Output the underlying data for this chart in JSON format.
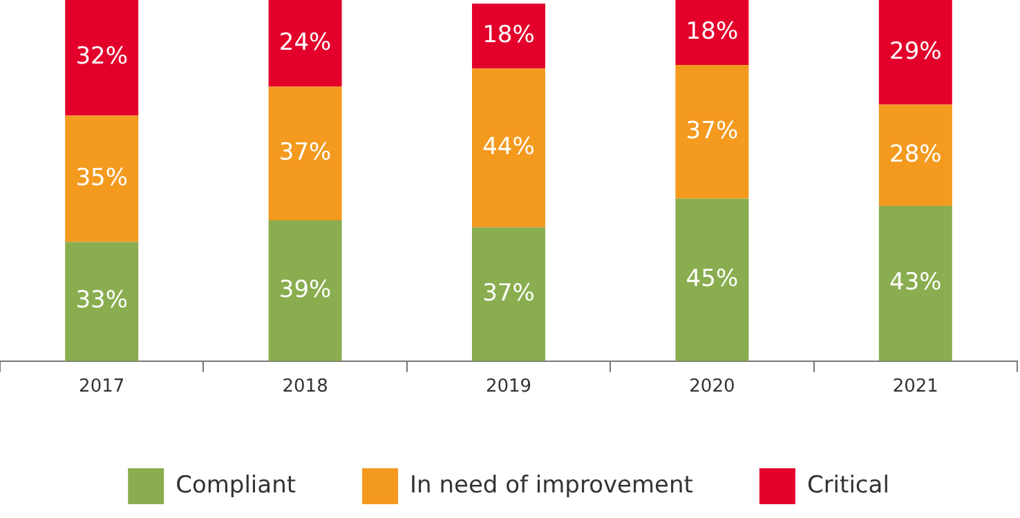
{
  "chart_data": {
    "type": "bar",
    "stacked": true,
    "categories": [
      "2017",
      "2018",
      "2019",
      "2020",
      "2021"
    ],
    "series": [
      {
        "name": "Compliant",
        "color": "#8aad4f",
        "values": [
          33,
          39,
          37,
          45,
          43
        ],
        "value_labels": [
          "33%",
          "39%",
          "37%",
          "45%",
          "43%"
        ]
      },
      {
        "name": "In need of improvement",
        "color": "#f39a1f",
        "values": [
          35,
          37,
          44,
          37,
          28
        ],
        "value_labels": [
          "35%",
          "37%",
          "44%",
          "37%",
          "28%"
        ]
      },
      {
        "name": "Critical",
        "color": "#e3002b",
        "values": [
          32,
          24,
          18,
          18,
          29
        ],
        "value_labels": [
          "32%",
          "24%",
          "18%",
          "18%",
          "29%"
        ]
      }
    ],
    "ylim": [
      0,
      100
    ],
    "tick_labels": "x",
    "grid": false,
    "legend": "bottom"
  }
}
